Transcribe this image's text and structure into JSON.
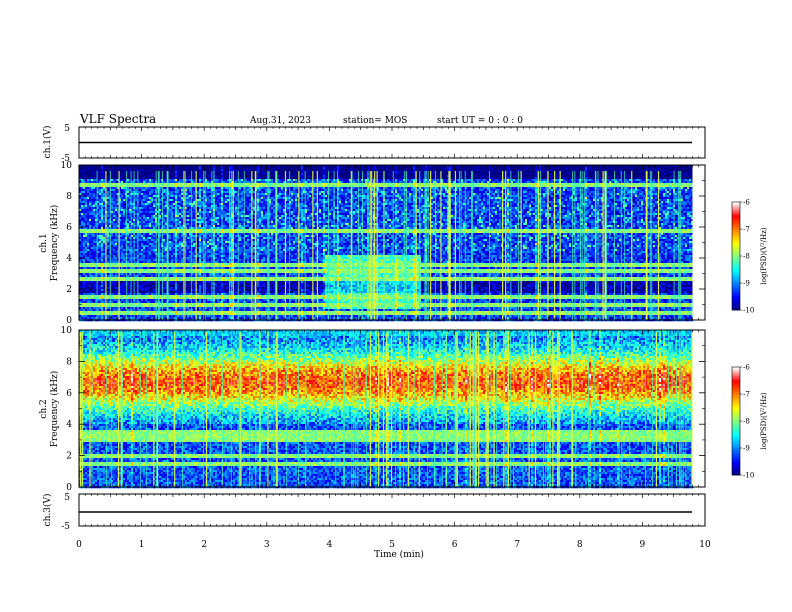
{
  "header": {
    "title": "VLF Spectra",
    "date": "Aug.31, 2023",
    "station": "station= MOS",
    "start_ut": "start  UT =   0 : 0  : 0"
  },
  "chart_data": [
    {
      "type": "line",
      "name": "ch1-waveform",
      "ylabel": "ch.1(V)",
      "ylim": [
        -5,
        5
      ],
      "y_ticks": [
        "5",
        "-5"
      ],
      "xlim": [
        0,
        10
      ],
      "x": [
        0,
        9.8
      ],
      "y": [
        0,
        0
      ]
    },
    {
      "type": "heatmap",
      "name": "ch1-spectrogram",
      "ylabel": "ch.1\nFrequency (kHz)",
      "ylabel_line1": "ch.1",
      "ylabel_line2": "Frequency (kHz)",
      "xlim": [
        0,
        10
      ],
      "ylim": [
        0,
        10
      ],
      "y_ticks": [
        "0",
        "2",
        "4",
        "6",
        "8",
        "10"
      ],
      "data_end_min": 9.8,
      "colorscale": {
        "min": -10,
        "max": -6,
        "ticks": [
          "-10",
          "-9",
          "-8",
          "-7",
          "-6"
        ],
        "label": "log(PSD)(V²/Hz)"
      },
      "features": {
        "background_level": -9.3,
        "band_lines_kHz": [
          0.5,
          1.0,
          1.5,
          2.7,
          3.2,
          3.5,
          5.8,
          8.7
        ],
        "enhanced_region": {
          "t_min": [
            3.9,
            5.45
          ],
          "f_kHz": [
            0.7,
            4.2
          ],
          "level": -8.2
        },
        "top_noise_band_kHz": [
          9.1,
          10
        ],
        "sferics_per_min": 12
      }
    },
    {
      "type": "heatmap",
      "name": "ch2-spectrogram",
      "ylabel": "ch.2\nFrequency (kHz)",
      "ylabel_line1": "ch.2",
      "ylabel_line2": "Frequency (kHz)",
      "xlim": [
        0,
        10
      ],
      "ylim": [
        0,
        10
      ],
      "y_ticks": [
        "0",
        "2",
        "4",
        "6",
        "8",
        "10"
      ],
      "data_end_min": 9.8,
      "colorscale": {
        "min": -10,
        "max": -6,
        "ticks": [
          "-10",
          "-9",
          "-8",
          "-7",
          "-6"
        ],
        "label": "log(PSD)(V²/Hz)"
      },
      "features": {
        "background_level": -9.2,
        "band_lines_kHz": [
          1.5,
          2.0,
          3.0,
          3.2,
          3.5
        ],
        "broadband_peak_kHz": 6.7,
        "broadband_peak_level": -6.8,
        "sferics_per_min": 12
      }
    },
    {
      "type": "line",
      "name": "ch3-waveform",
      "ylabel": "ch.3(V)",
      "ylim": [
        -5,
        5
      ],
      "y_ticks": [
        "5",
        "-5"
      ],
      "xlim": [
        0,
        10
      ],
      "x": [
        0,
        9.8
      ],
      "y": [
        0,
        0
      ]
    }
  ],
  "x_axis": {
    "label": "Time (min)",
    "ticks": [
      "0",
      "1",
      "2",
      "3",
      "4",
      "5",
      "6",
      "7",
      "8",
      "9",
      "10"
    ]
  },
  "colors": {
    "colormap": [
      "#00007f",
      "#0000ff",
      "#0080ff",
      "#00ffff",
      "#80ff80",
      "#ffff00",
      "#ff8000",
      "#ff0000",
      "#ffffff"
    ]
  }
}
